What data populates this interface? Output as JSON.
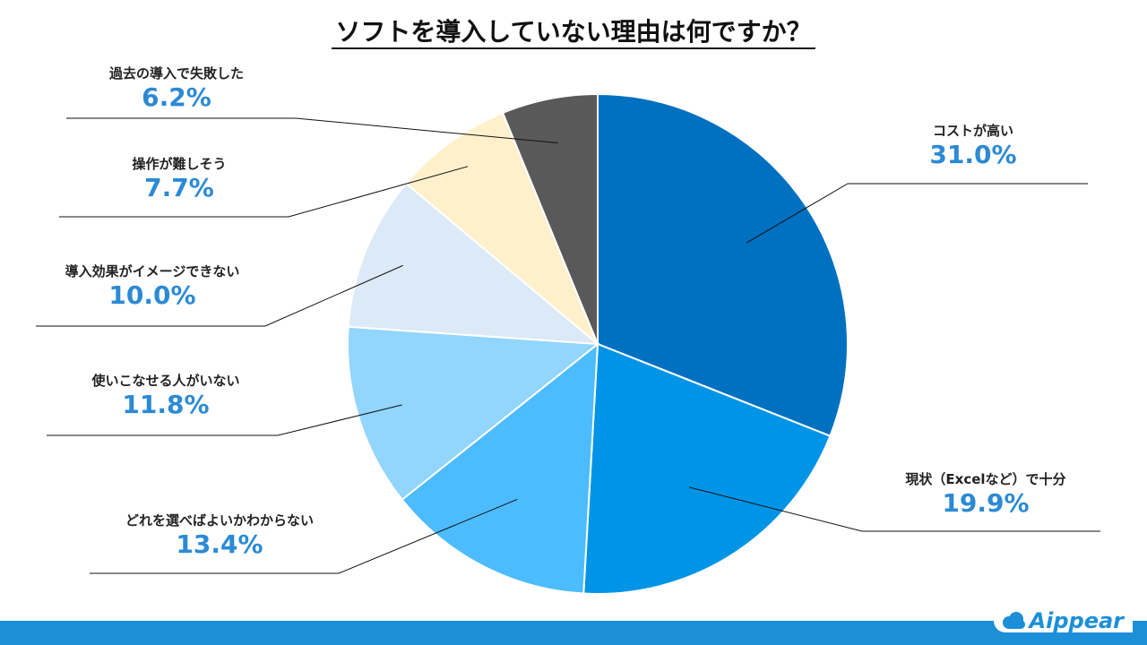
{
  "title": "ソフトを導入していない理由は何ですか？",
  "brand": "Aippear",
  "chart_data": {
    "type": "pie",
    "title": "ソフトを導入していない理由は何ですか？",
    "categories": [
      "コストが高い",
      "現状（Excelなど）で十分",
      "どれを選べばよいかわからない",
      "使いこなせる人がいない",
      "導入効果がイメージできない",
      "操作が難しそう",
      "過去の導入で失敗した"
    ],
    "values": [
      31.0,
      19.9,
      13.4,
      11.8,
      10.0,
      7.7,
      6.2
    ],
    "value_labels": [
      "31.0%",
      "19.9%",
      "13.4%",
      "11.8%",
      "10.0%",
      "7.7%",
      "6.2%"
    ],
    "colors": [
      "#0070c0",
      "#0094e6",
      "#4dbcff",
      "#92d5fd",
      "#dce9f6",
      "#fff0cc",
      "#595959"
    ],
    "start_angle": "12 o'clock",
    "direction": "clockwise",
    "legend": "none"
  }
}
